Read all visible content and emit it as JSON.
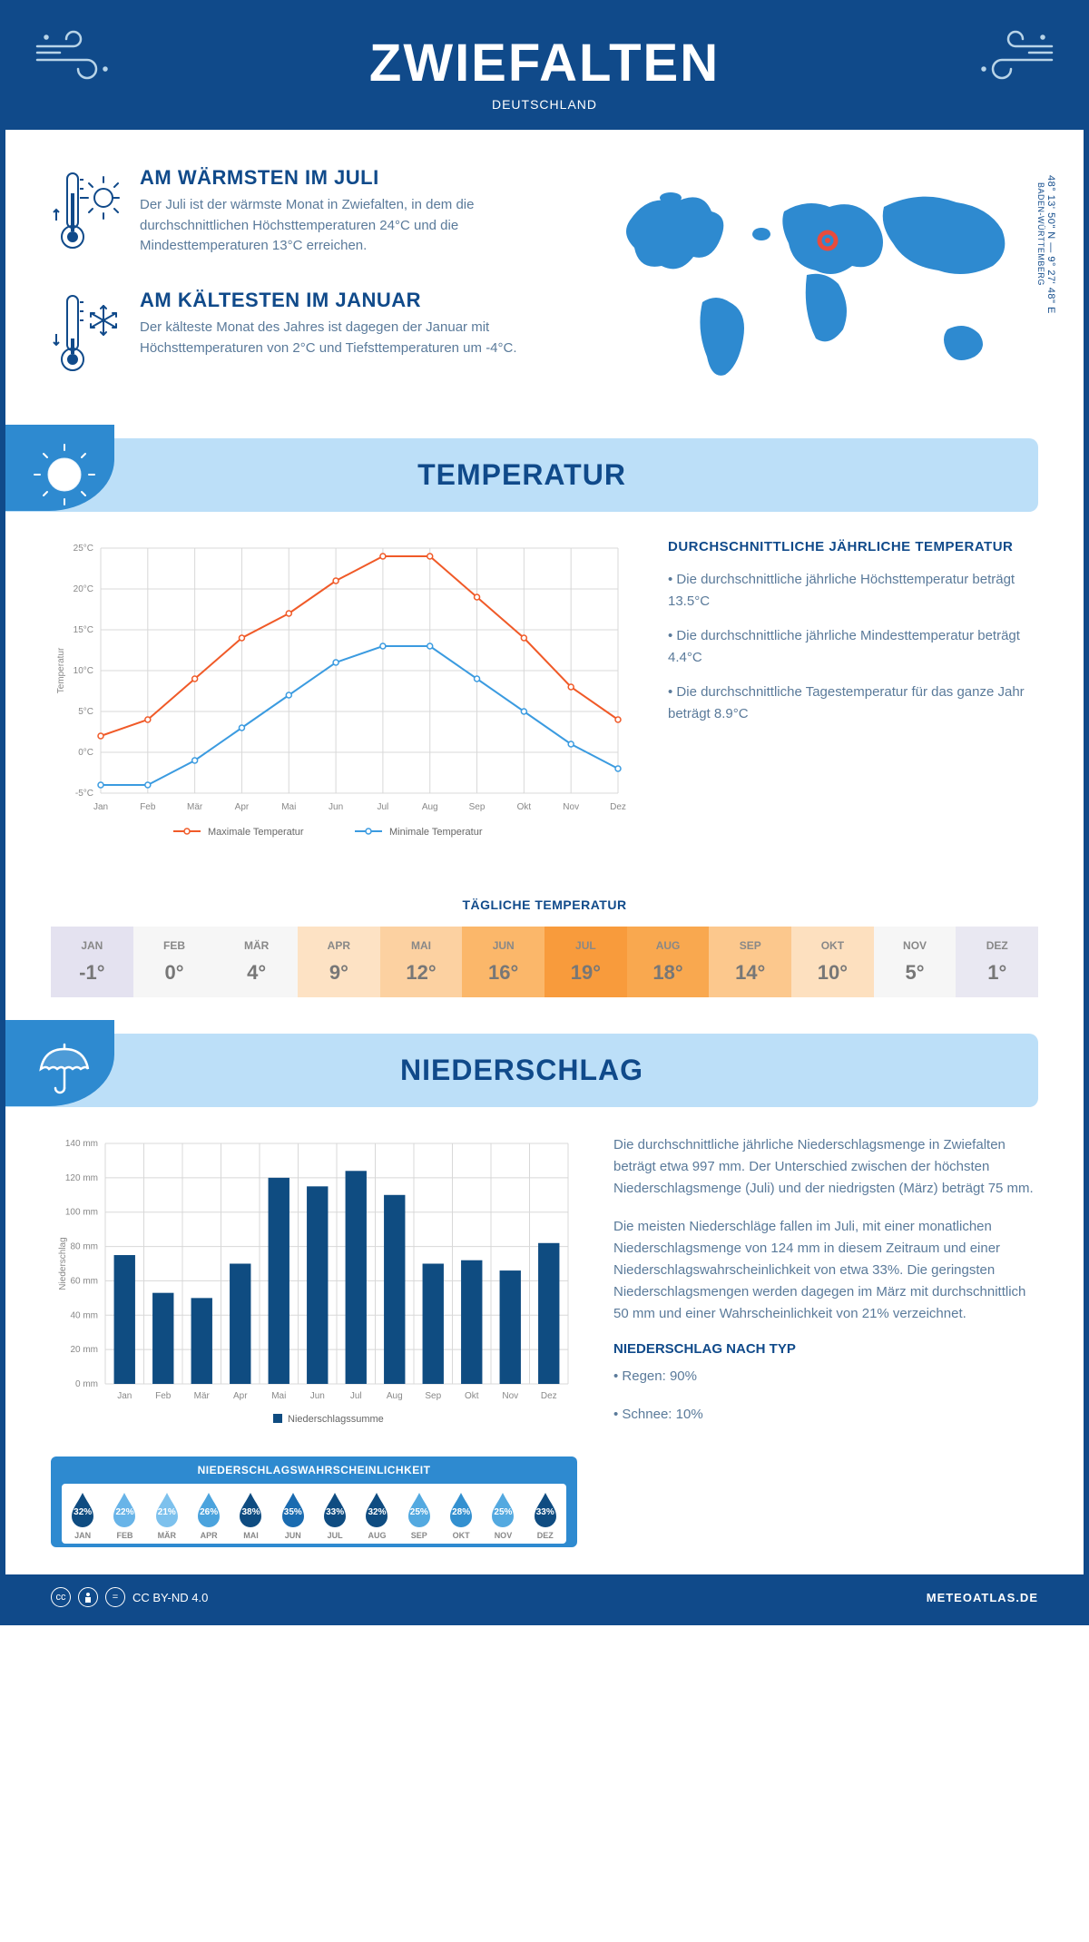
{
  "header": {
    "title": "ZWIEFALTEN",
    "country": "DEUTSCHLAND"
  },
  "coords": {
    "lat": "48° 13' 50\" N — 9° 27' 48\" E",
    "region": "BADEN-WÜRTTEMBERG"
  },
  "warmest": {
    "title": "AM WÄRMSTEN IM JULI",
    "body": "Der Juli ist der wärmste Monat in Zwiefalten, in dem die durchschnittlichen Höchsttemperaturen 24°C und die Mindesttemperaturen 13°C erreichen."
  },
  "coldest": {
    "title": "AM KÄLTESTEN IM JANUAR",
    "body": "Der kälteste Monat des Jahres ist dagegen der Januar mit Höchsttemperaturen von 2°C und Tiefsttemperaturen um -4°C."
  },
  "sections": {
    "temperature": "TEMPERATUR",
    "precipitation": "NIEDERSCHLAG"
  },
  "temp_chart": {
    "type": "line",
    "months": [
      "Jan",
      "Feb",
      "Mär",
      "Apr",
      "Mai",
      "Jun",
      "Jul",
      "Aug",
      "Sep",
      "Okt",
      "Nov",
      "Dez"
    ],
    "max_series": {
      "label": "Maximale Temperatur",
      "color": "#f05a28",
      "values": [
        2,
        4,
        9,
        14,
        17,
        21,
        24,
        24,
        19,
        14,
        8,
        4
      ]
    },
    "min_series": {
      "label": "Minimale Temperatur",
      "color": "#3b9be0",
      "values": [
        -4,
        -4,
        -1,
        3,
        7,
        11,
        13,
        13,
        9,
        5,
        1,
        -2
      ]
    },
    "ylim": [
      -5,
      25
    ],
    "ytick_step": 5,
    "ylabels": [
      "-5°C",
      "0°C",
      "5°C",
      "10°C",
      "15°C",
      "20°C",
      "25°C"
    ],
    "ylabel": "Temperatur",
    "grid_color": "#d8d8d8",
    "line_width": 2,
    "marker_size": 3
  },
  "temp_text": {
    "heading": "DURCHSCHNITTLICHE JÄHRLICHE TEMPERATUR",
    "b1": "• Die durchschnittliche jährliche Höchsttemperatur beträgt 13.5°C",
    "b2": "• Die durchschnittliche jährliche Mindesttemperatur beträgt 4.4°C",
    "b3": "• Die durchschnittliche Tagestemperatur für das ganze Jahr beträgt 8.9°C"
  },
  "daily_temp": {
    "title": "TÄGLICHE TEMPERATUR",
    "months": [
      "JAN",
      "FEB",
      "MÄR",
      "APR",
      "MAI",
      "JUN",
      "JUL",
      "AUG",
      "SEP",
      "OKT",
      "NOV",
      "DEZ"
    ],
    "values": [
      "-1°",
      "0°",
      "4°",
      "9°",
      "12°",
      "16°",
      "19°",
      "18°",
      "14°",
      "10°",
      "5°",
      "1°"
    ],
    "cell_colors": [
      "#e4e2f0",
      "#f6f6f6",
      "#f6f6f6",
      "#fde2c4",
      "#fcd1a1",
      "#fbb76a",
      "#f89b3c",
      "#f9a84f",
      "#fcc88d",
      "#fde0bf",
      "#f6f6f6",
      "#e9e8f2"
    ]
  },
  "precip_chart": {
    "type": "bar",
    "months": [
      "Jan",
      "Feb",
      "Mär",
      "Apr",
      "Mai",
      "Jun",
      "Jul",
      "Aug",
      "Sep",
      "Okt",
      "Nov",
      "Dez"
    ],
    "values": [
      75,
      53,
      50,
      70,
      120,
      115,
      124,
      110,
      70,
      72,
      66,
      82
    ],
    "bar_color": "#0f4c81",
    "ylim": [
      0,
      140
    ],
    "ytick_step": 20,
    "ylabels": [
      "0 mm",
      "20 mm",
      "40 mm",
      "60 mm",
      "80 mm",
      "100 mm",
      "120 mm",
      "140 mm"
    ],
    "ylabel": "Niederschlag",
    "legend": "Niederschlagssumme",
    "grid_color": "#d8d8d8",
    "bar_width": 0.55
  },
  "precip_text": {
    "p1": "Die durchschnittliche jährliche Niederschlagsmenge in Zwiefalten beträgt etwa 997 mm. Der Unterschied zwischen der höchsten Niederschlagsmenge (Juli) und der niedrigsten (März) beträgt 75 mm.",
    "p2": "Die meisten Niederschläge fallen im Juli, mit einer monatlichen Niederschlagsmenge von 124 mm in diesem Zeitraum und einer Niederschlagswahrscheinlichkeit von etwa 33%. Die geringsten Niederschlagsmengen werden dagegen im März mit durchschnittlich 50 mm und einer Wahrscheinlichkeit von 21% verzeichnet.",
    "type_heading": "NIEDERSCHLAG NACH TYP",
    "type1": "• Regen: 90%",
    "type2": "• Schnee: 10%"
  },
  "prob": {
    "title": "NIEDERSCHLAGSWAHRSCHEINLICHKEIT",
    "months": [
      "JAN",
      "FEB",
      "MÄR",
      "APR",
      "MAI",
      "JUN",
      "JUL",
      "AUG",
      "SEP",
      "OKT",
      "NOV",
      "DEZ"
    ],
    "values": [
      "32%",
      "22%",
      "21%",
      "26%",
      "38%",
      "35%",
      "33%",
      "32%",
      "25%",
      "28%",
      "25%",
      "33%"
    ],
    "drop_colors": [
      "#0f4c81",
      "#68b4e8",
      "#7dc1ed",
      "#4ba3dd",
      "#0f4c81",
      "#1a6bb0",
      "#0f4c81",
      "#0f4c81",
      "#53a9e0",
      "#3390d0",
      "#53a9e0",
      "#0f4c81"
    ]
  },
  "footer": {
    "license": "CC BY-ND 4.0",
    "site": "METEOATLAS.DE"
  }
}
